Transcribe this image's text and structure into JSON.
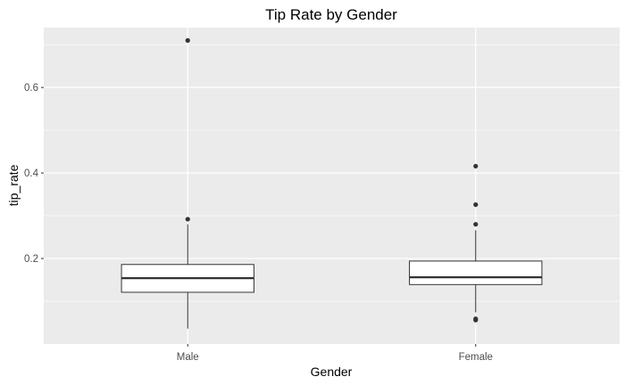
{
  "chart_data": {
    "type": "boxplot",
    "title": "Tip Rate by Gender",
    "xlabel": "Gender",
    "ylabel": "tip_rate",
    "categories": [
      "Male",
      "Female"
    ],
    "ylim": [
      0.0,
      0.74
    ],
    "yticks": [
      0.2,
      0.4,
      0.6
    ],
    "ytick_labels": [
      "0.2",
      "0.4",
      "0.6"
    ],
    "grid": true,
    "legend": "none",
    "boxes": [
      {
        "category": "Male",
        "whisker_low": 0.036,
        "q1": 0.121,
        "median": 0.154,
        "q3": 0.186,
        "whisker_high": 0.28,
        "outliers": [
          0.292,
          0.71
        ]
      },
      {
        "category": "Female",
        "whisker_low": 0.074,
        "q1": 0.139,
        "median": 0.156,
        "q3": 0.194,
        "whisker_high": 0.266,
        "outliers": [
          0.056,
          0.059,
          0.28,
          0.326,
          0.416
        ]
      }
    ],
    "colors": {
      "panel_background": "#ebebeb",
      "grid": "#ffffff",
      "box_fill": "#ffffff",
      "box_line": "#333333",
      "point": "#333333"
    }
  }
}
